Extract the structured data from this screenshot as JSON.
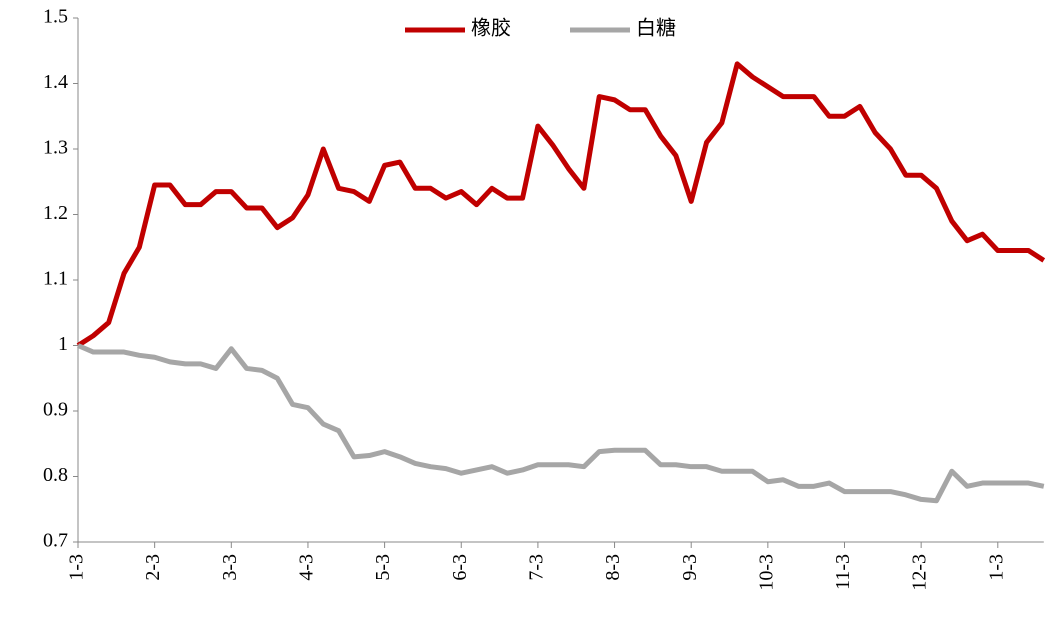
{
  "chart_data": {
    "type": "line",
    "categories": [
      "1-3",
      null,
      null,
      null,
      null,
      "2-3",
      null,
      null,
      null,
      null,
      "3-3",
      null,
      null,
      null,
      null,
      "4-3",
      null,
      null,
      null,
      null,
      "5-3",
      null,
      null,
      null,
      null,
      "6-3",
      null,
      null,
      null,
      null,
      "7-3",
      null,
      null,
      null,
      null,
      "8-3",
      null,
      null,
      null,
      null,
      "9-3",
      null,
      null,
      null,
      null,
      "10-3",
      null,
      null,
      null,
      null,
      "11-3",
      null,
      null,
      null,
      null,
      "12-3",
      null,
      null,
      null,
      null,
      "1-3",
      null,
      null,
      null
    ],
    "series": [
      {
        "name": "橡胶",
        "color": "#c00000",
        "values": [
          1.0,
          1.015,
          1.035,
          1.11,
          1.15,
          1.245,
          1.245,
          1.215,
          1.215,
          1.235,
          1.235,
          1.21,
          1.21,
          1.18,
          1.195,
          1.23,
          1.3,
          1.24,
          1.235,
          1.22,
          1.275,
          1.28,
          1.24,
          1.24,
          1.225,
          1.235,
          1.215,
          1.24,
          1.225,
          1.225,
          1.335,
          1.305,
          1.27,
          1.24,
          1.38,
          1.375,
          1.36,
          1.36,
          1.32,
          1.29,
          1.22,
          1.31,
          1.34,
          1.43,
          1.41,
          1.395,
          1.38,
          1.38,
          1.38,
          1.35,
          1.35,
          1.365,
          1.325,
          1.3,
          1.26,
          1.26,
          1.24,
          1.19,
          1.16,
          1.17,
          1.145,
          1.145,
          1.145,
          1.13
        ]
      },
      {
        "name": "白糖",
        "color": "#a6a6a6",
        "values": [
          1.0,
          0.99,
          0.99,
          0.99,
          0.985,
          0.982,
          0.975,
          0.972,
          0.972,
          0.965,
          0.995,
          0.965,
          0.962,
          0.95,
          0.91,
          0.905,
          0.88,
          0.87,
          0.83,
          0.832,
          0.838,
          0.83,
          0.82,
          0.815,
          0.812,
          0.805,
          0.81,
          0.815,
          0.805,
          0.81,
          0.818,
          0.818,
          0.818,
          0.815,
          0.838,
          0.84,
          0.84,
          0.84,
          0.818,
          0.818,
          0.815,
          0.815,
          0.808,
          0.808,
          0.808,
          0.792,
          0.795,
          0.785,
          0.785,
          0.79,
          0.777,
          0.777,
          0.777,
          0.777,
          0.772,
          0.765,
          0.763,
          0.808,
          0.785,
          0.79,
          0.79,
          0.79,
          0.79,
          0.785
        ]
      }
    ],
    "ylim": [
      0.7,
      1.5
    ],
    "yticks": [
      0.7,
      0.8,
      0.9,
      1,
      1.1,
      1.2,
      1.3,
      1.4,
      1.5
    ],
    "grid": false,
    "legend": "top"
  }
}
